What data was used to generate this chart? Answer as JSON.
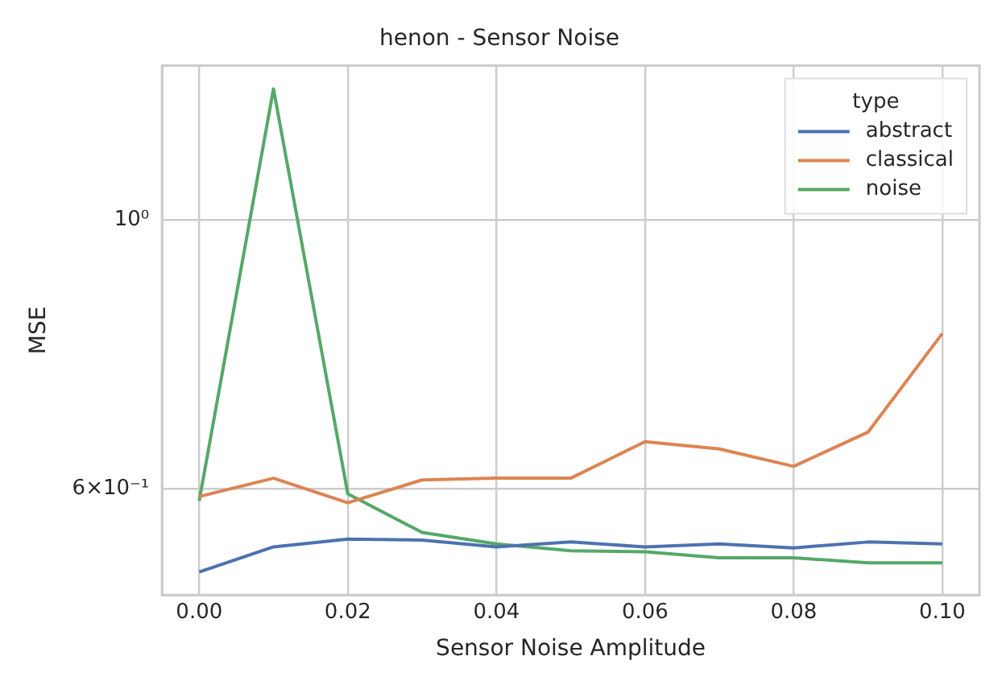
{
  "chart_data": {
    "type": "line",
    "title": "henon - Sensor Noise",
    "xlabel": "Sensor Noise Amplitude",
    "ylabel": "MSE",
    "legend_title": "type",
    "x": [
      0,
      0.01,
      0.02,
      0.03,
      0.04,
      0.05,
      0.06,
      0.07,
      0.08,
      0.09,
      0.1
    ],
    "series": [
      {
        "name": "abstract",
        "color": "#4c72b0",
        "values": [
          0.512,
          0.537,
          0.545,
          0.544,
          0.537,
          0.542,
          0.537,
          0.54,
          0.536,
          0.542,
          0.54
        ]
      },
      {
        "name": "classical",
        "color": "#dd8452",
        "values": [
          0.591,
          0.612,
          0.584,
          0.61,
          0.612,
          0.612,
          0.656,
          0.647,
          0.626,
          0.668,
          0.806
        ]
      },
      {
        "name": "noise",
        "color": "#55a868",
        "values": [
          0.586,
          1.284,
          0.594,
          0.552,
          0.54,
          0.533,
          0.532,
          0.526,
          0.526,
          0.521,
          0.521
        ]
      }
    ],
    "log": "y",
    "xlim": [
      -0.005,
      0.105
    ],
    "xticks": [
      {
        "value": 0,
        "label": "0.00"
      },
      {
        "value": 0.02,
        "label": "0.02"
      },
      {
        "value": 0.04,
        "label": "0.04"
      },
      {
        "value": 0.06,
        "label": "0.06"
      },
      {
        "value": 0.08,
        "label": "0.08"
      },
      {
        "value": 0.1,
        "label": "0.10"
      }
    ],
    "ylim": [
      0.49,
      1.342
    ],
    "yticks": [
      {
        "value": 0.6,
        "label": "6×10⁻¹"
      },
      {
        "value": 1,
        "label": "10⁰"
      }
    ],
    "grid": true,
    "legend": "top right",
    "marker": "none",
    "line_style": "solid"
  }
}
